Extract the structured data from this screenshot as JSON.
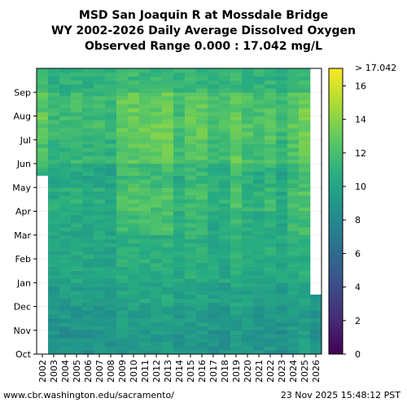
{
  "chart_data": {
    "type": "heatmap",
    "title_lines": [
      "MSD San Joaquin R at Mossdale Bridge",
      "WY 2002-2026 Daily Average Dissolved Oxygen",
      "Observed Range 0.000 : 17.042 mg/L"
    ],
    "x_categories": [
      "2002",
      "2003",
      "2004",
      "2005",
      "2006",
      "2007",
      "2008",
      "2009",
      "2010",
      "2011",
      "2012",
      "2013",
      "2014",
      "2015",
      "2016",
      "2017",
      "2018",
      "2019",
      "2020",
      "2021",
      "2022",
      "2023",
      "2024",
      "2025",
      "2026"
    ],
    "y_months": [
      "Oct",
      "Nov",
      "Dec",
      "Jan",
      "Feb",
      "Mar",
      "Apr",
      "May",
      "Jun",
      "Jul",
      "Aug",
      "Sep"
    ],
    "colorbar": {
      "range": [
        0,
        17.042
      ],
      "ticks": [
        0,
        2,
        4,
        6,
        8,
        10,
        12,
        14,
        16
      ],
      "top_label": "> 17.042",
      "colormap": "viridis"
    },
    "approx_monthly_mean_do": {
      "Oct": 9.0,
      "Nov": 9.3,
      "Dec": 9.8,
      "Jan": 10.4,
      "Feb": 10.6,
      "Mar": 10.9,
      "Apr": 11.4,
      "May": 11.0,
      "Jun": 12.0,
      "Jul": 12.5,
      "Aug": 12.3,
      "Sep": 11.2
    },
    "missing_data": [
      {
        "year": "2002",
        "months": "Oct–mid May"
      },
      {
        "year": "2026",
        "months": "mid Dec–Sep"
      }
    ],
    "grid": true
  },
  "footer": {
    "left": "www.cbr.washington.edu/sacramento/",
    "right": "23 Nov 2025 15:48:12 PST"
  }
}
